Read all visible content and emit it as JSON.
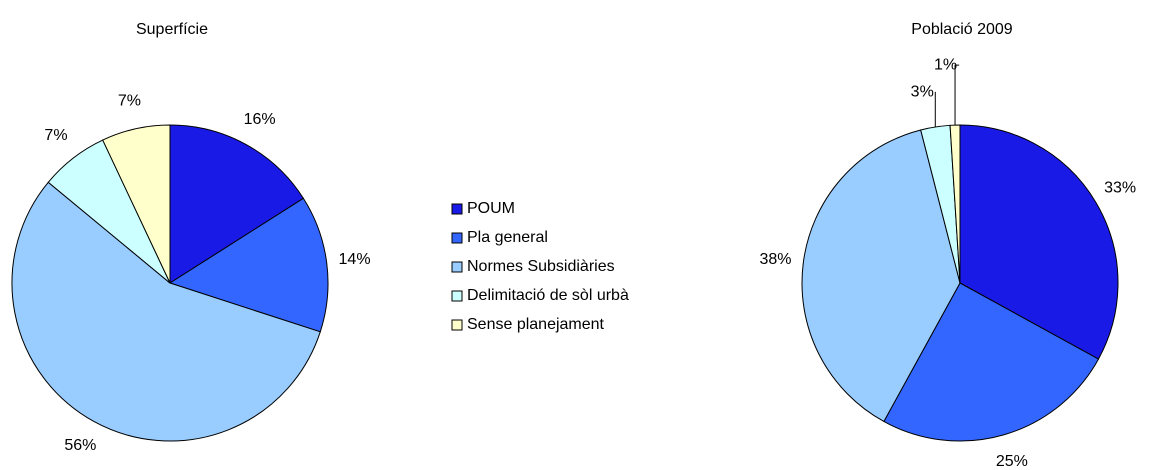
{
  "chart_data": [
    {
      "type": "pie",
      "title": "Superfície",
      "categories": [
        "POUM",
        "Pla general",
        "Normes Subsidiàries",
        "Delimitació de sòl urbà",
        "Sense planejament"
      ],
      "values": [
        16,
        14,
        56,
        7,
        7
      ],
      "value_labels": [
        "16%",
        "14%",
        "56%",
        "7%",
        "7%"
      ],
      "colors": [
        "#1a1ae6",
        "#3366ff",
        "#99ccff",
        "#ccffff",
        "#ffffcc"
      ]
    },
    {
      "type": "pie",
      "title": "Població 2009",
      "categories": [
        "POUM",
        "Pla general",
        "Normes Subsidiàries",
        "Delimitació de sòl urbà",
        "Sense planejament"
      ],
      "values": [
        33,
        25,
        38,
        3,
        1
      ],
      "value_labels": [
        "33%",
        "25%",
        "38%",
        "3%",
        "1%"
      ],
      "colors": [
        "#1a1ae6",
        "#3366ff",
        "#99ccff",
        "#ccffff",
        "#ffffcc"
      ]
    }
  ]
}
